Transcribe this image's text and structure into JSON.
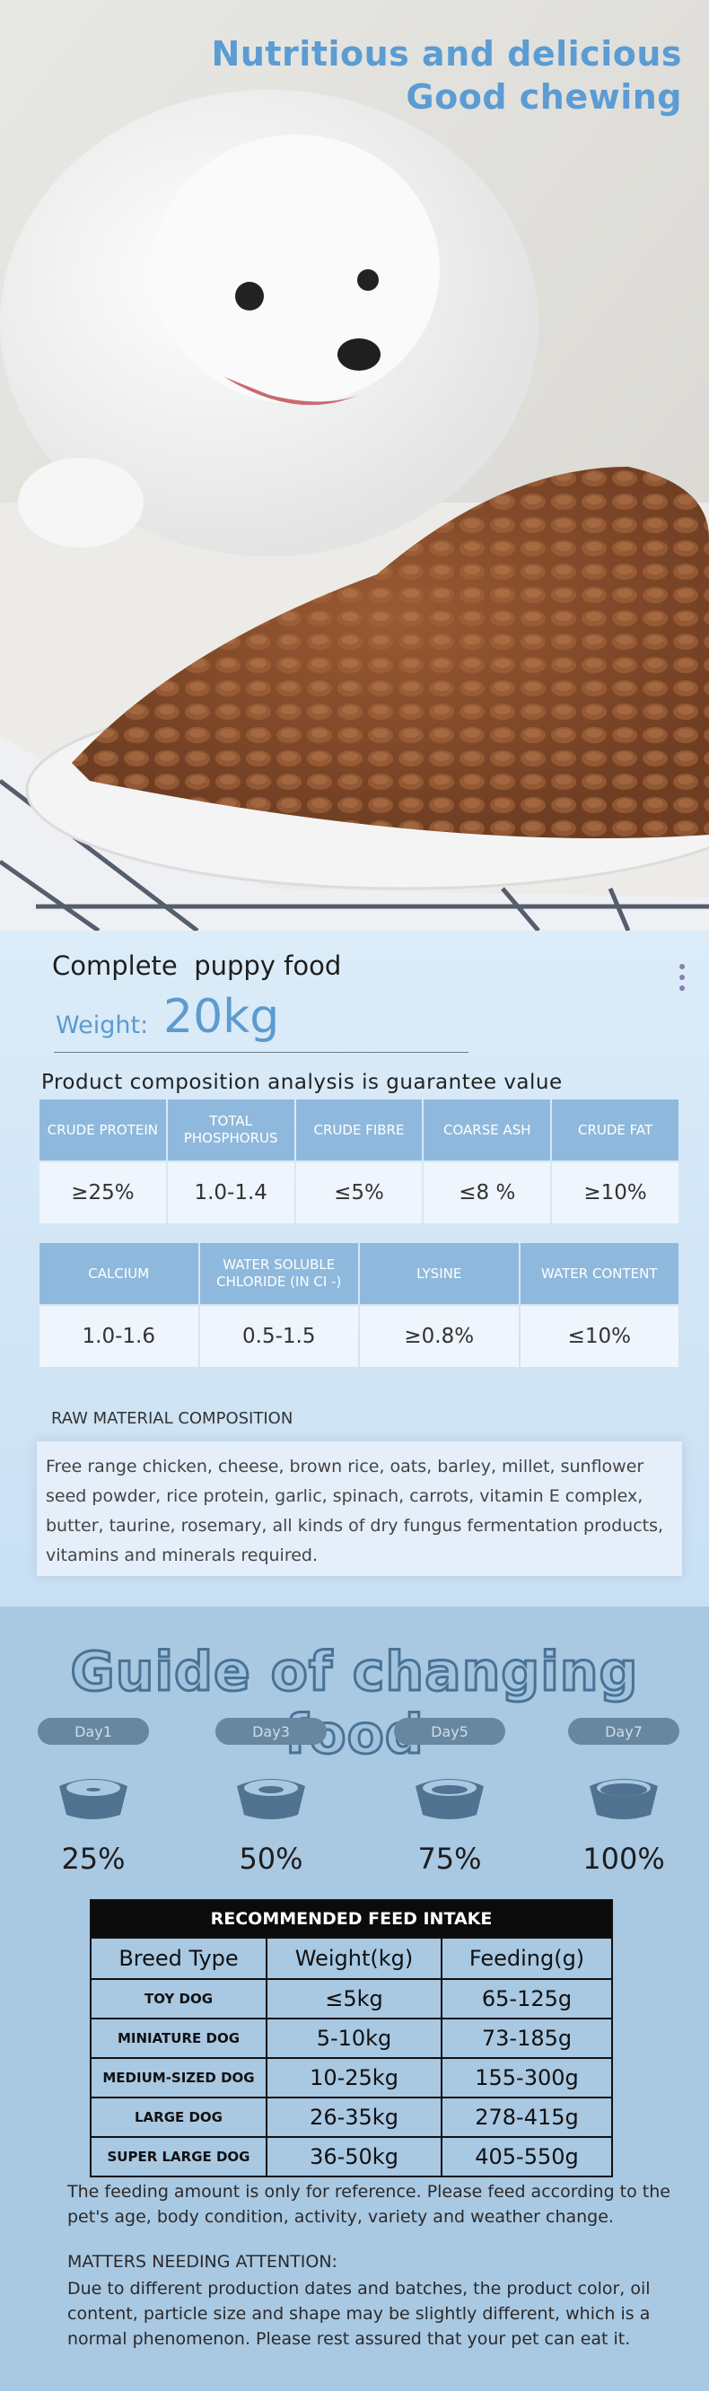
{
  "hero": {
    "title_lines": [
      "Nutritious and delicious",
      "Good chewing"
    ]
  },
  "product": {
    "name": "Complete  puppy food",
    "weight_label": "Weight:",
    "weight_value": "20kg",
    "analysis_title": "Product composition analysis is guarantee value",
    "table1": {
      "headers": [
        "CRUDE PROTEIN",
        "TOTAL PHOSPHORUS",
        "CRUDE FIBRE",
        "COARSE ASH",
        "CRUDE FAT"
      ],
      "values": [
        "≥25%",
        "1.0-1.4",
        "≤5%",
        "≤8 %",
        "≥10%"
      ]
    },
    "table2": {
      "headers": [
        "CALCIUM",
        "WATER SOLUBLE CHLORIDE (IN CI -)",
        "LYSINE",
        "WATER CONTENT"
      ],
      "values": [
        "1.0-1.6",
        "0.5-1.5",
        "≥0.8%",
        "≤10%"
      ]
    }
  },
  "raw_material": {
    "title": "RAW MATERIAL COMPOSITION",
    "text": "Free range chicken, cheese, brown rice, oats, barley, millet, sunflower seed powder, rice protein, garlic, spinach, carrots, vitamin E complex, butter, taurine, rosemary, all kinds of dry fungus fermentation products, vitamins and minerals required."
  },
  "guide": {
    "title": "Guide of changing food",
    "steps": [
      {
        "day": "Day1",
        "percent": "25%"
      },
      {
        "day": "Day3",
        "percent": "50%"
      },
      {
        "day": "Day5",
        "percent": "75%"
      },
      {
        "day": "Day7",
        "percent": "100%"
      }
    ]
  },
  "feed_table": {
    "title": "RECOMMENDED FEED INTAKE",
    "headers": [
      "Breed Type",
      "Weight(kg)",
      "Feeding(g)"
    ],
    "rows": [
      [
        "TOY DOG",
        "≤5kg",
        "65-125g"
      ],
      [
        "MINIATURE DOG",
        "5-10kg",
        "73-185g"
      ],
      [
        "MEDIUM-SIZED DOG",
        "10-25kg",
        "155-300g"
      ],
      [
        "LARGE DOG",
        "26-35kg",
        "278-415g"
      ],
      [
        "SUPER LARGE DOG",
        "36-50kg",
        "405-550g"
      ]
    ]
  },
  "notes": {
    "reference": "The feeding amount is only for reference. Please feed according to the pet's age, body condition, activity, variety and weather change.",
    "attention_title": "MATTERS NEEDING ATTENTION:",
    "attention_text": "Due to different production dates and batches, the product color, oil content, particle size and shape may be slightly different, which is a normal phenomenon. Please rest assured that your pet can eat it."
  }
}
